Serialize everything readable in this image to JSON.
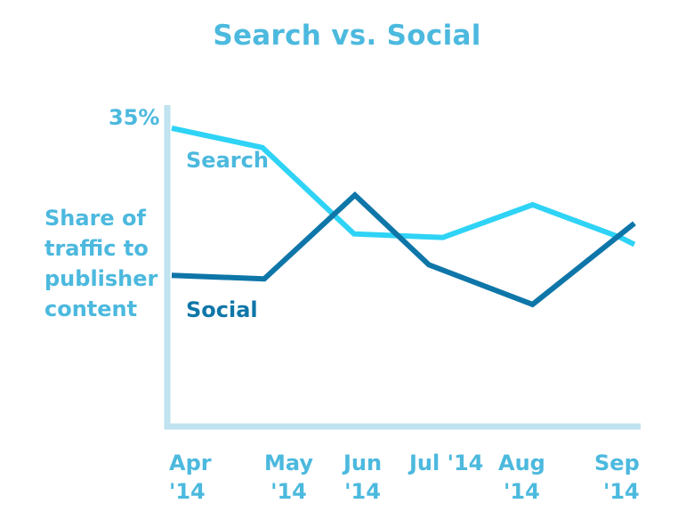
{
  "chart_data": {
    "type": "line",
    "title": "Search vs. Social",
    "ylabel_lines": [
      "Share of",
      "traffic to",
      "publisher",
      "content"
    ],
    "ytick_label": "35%",
    "ylim": [
      0,
      35
    ],
    "categories": [
      [
        "Apr",
        "'14"
      ],
      [
        "May",
        "'14"
      ],
      [
        "Jun",
        "'14"
      ],
      [
        "Jul '14",
        ""
      ],
      [
        "Aug",
        "'14"
      ],
      [
        "Sep",
        "'14"
      ]
    ],
    "x": [
      0,
      1,
      2,
      3,
      4,
      5
    ],
    "series": [
      {
        "name": "Search",
        "color": "#2fd3f5",
        "label_color": "#4cb9de",
        "x": [
          0.0,
          0.98,
          1.97,
          2.93,
          3.9,
          4.85,
          5.0
        ],
        "values": [
          34.0,
          31.8,
          22.0,
          21.6,
          25.3,
          21.6,
          20.8
        ]
      },
      {
        "name": "Social",
        "color": "#0e76a8",
        "label_color": "#0e76a8",
        "x": [
          0.0,
          1.0,
          1.98,
          2.78,
          3.9,
          5.0
        ],
        "values": [
          17.3,
          16.9,
          26.4,
          18.5,
          14.0,
          23.2
        ]
      }
    ],
    "axis_color": "#bfe3ef"
  }
}
